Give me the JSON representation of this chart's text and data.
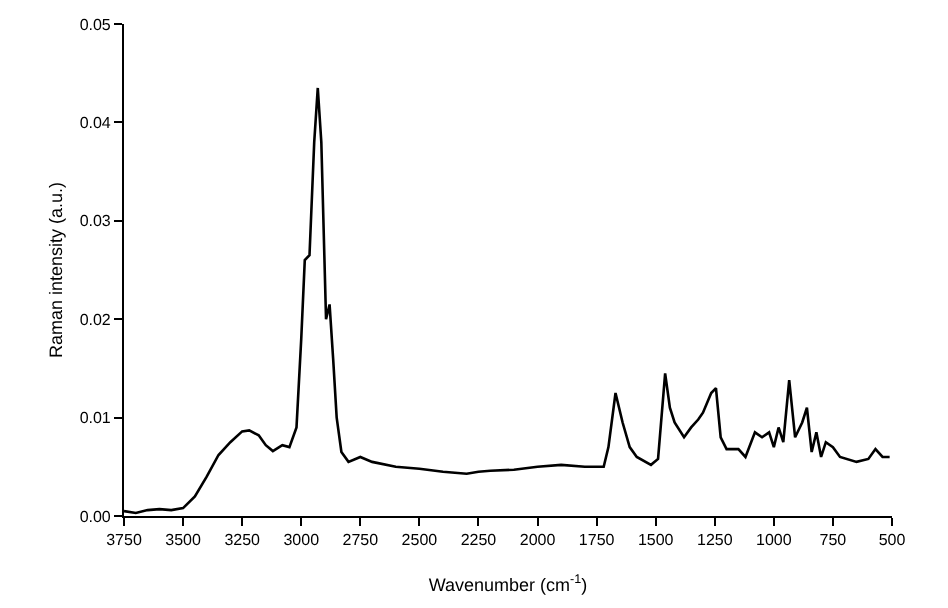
{
  "chart_data": {
    "type": "line",
    "xlabel": "Wavenumber (cm$^{-1}$)",
    "ylabel": "Raman intensity (a.u.)",
    "xlim": [
      3750,
      500
    ],
    "xticks": [
      3750,
      3500,
      3250,
      3000,
      2750,
      2500,
      2250,
      2000,
      1750,
      1500,
      1250,
      1000,
      750,
      500
    ],
    "ylim": [
      0,
      0.05
    ],
    "yticks": [
      {
        "value": 0,
        "label": "0.00"
      },
      {
        "value": 0.01,
        "label": "0.01"
      },
      {
        "value": 0.02,
        "label": "0.02"
      },
      {
        "value": 0.03,
        "label": "0.03"
      },
      {
        "value": 0.04,
        "label": "0.04"
      },
      {
        "value": 0.05,
        "label": "0.05"
      }
    ],
    "marker": "none",
    "line_style": "solid",
    "x": [
      3750,
      3700,
      3650,
      3600,
      3550,
      3500,
      3450,
      3400,
      3350,
      3300,
      3250,
      3220,
      3180,
      3150,
      3120,
      3080,
      3050,
      3020,
      3000,
      2985,
      2965,
      2945,
      2930,
      2915,
      2895,
      2880,
      2865,
      2850,
      2830,
      2800,
      2750,
      2700,
      2600,
      2500,
      2400,
      2300,
      2250,
      2200,
      2100,
      2000,
      1900,
      1800,
      1720,
      1700,
      1670,
      1640,
      1610,
      1580,
      1520,
      1490,
      1460,
      1440,
      1420,
      1380,
      1350,
      1320,
      1300,
      1265,
      1245,
      1225,
      1200,
      1150,
      1120,
      1080,
      1050,
      1020,
      1000,
      980,
      960,
      935,
      910,
      880,
      860,
      840,
      820,
      800,
      780,
      750,
      720,
      650,
      600,
      570,
      540,
      510
    ],
    "series": [
      {
        "color": "#000000",
        "values": [
          0.0005,
          0.0003,
          0.0006,
          0.0007,
          0.0006,
          0.0008,
          0.002,
          0.004,
          0.0062,
          0.0075,
          0.0086,
          0.0087,
          0.0082,
          0.0072,
          0.0066,
          0.0072,
          0.007,
          0.009,
          0.018,
          0.026,
          0.0265,
          0.038,
          0.0435,
          0.038,
          0.02,
          0.0215,
          0.016,
          0.01,
          0.0065,
          0.0055,
          0.006,
          0.0055,
          0.005,
          0.0048,
          0.0045,
          0.0043,
          0.0045,
          0.0046,
          0.0047,
          0.005,
          0.0052,
          0.005,
          0.005,
          0.007,
          0.0125,
          0.0095,
          0.007,
          0.006,
          0.0052,
          0.0058,
          0.0145,
          0.011,
          0.0095,
          0.008,
          0.009,
          0.0098,
          0.0105,
          0.0125,
          0.013,
          0.008,
          0.0068,
          0.0068,
          0.006,
          0.0085,
          0.008,
          0.0085,
          0.007,
          0.009,
          0.0075,
          0.0138,
          0.008,
          0.0095,
          0.011,
          0.0065,
          0.0085,
          0.006,
          0.0075,
          0.007,
          0.006,
          0.0055,
          0.0058,
          0.0068,
          0.006,
          0.006
        ]
      }
    ]
  }
}
